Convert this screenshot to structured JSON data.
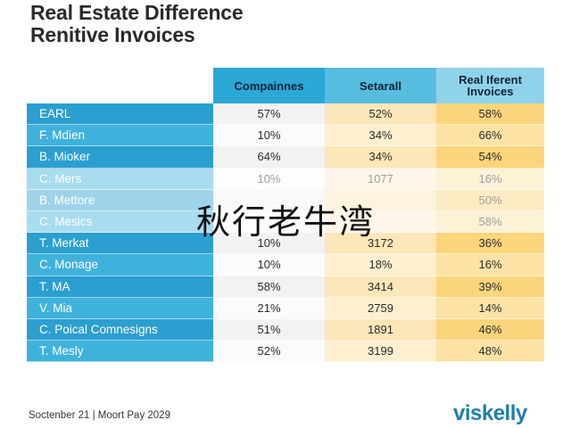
{
  "title": {
    "line1": "Real Estate Difference",
    "line2": "Renitive Invoices"
  },
  "columns": [
    "Compainnes",
    "Setarall",
    "Real Iferent Invoices"
  ],
  "chart_data": {
    "type": "table",
    "title": "Real Estate Difference Renitive Invoices",
    "columns": [
      "Compainnes",
      "Setarall",
      "Real Iferent Invoices"
    ],
    "rows": [
      {
        "name": "EARL",
        "values": [
          "57%",
          "52%",
          "58%"
        ]
      },
      {
        "name": "F. Mdien",
        "values": [
          "10%",
          "34%",
          "66%"
        ]
      },
      {
        "name": "B. Mioker",
        "values": [
          "64%",
          "34%",
          "54%"
        ]
      },
      {
        "name": "C. Mers",
        "values": [
          "10%",
          "1077",
          "16%"
        ]
      },
      {
        "name": "B. Mettore",
        "values": [
          "",
          "",
          "50%"
        ]
      },
      {
        "name": "C. Mesics",
        "values": [
          "",
          "",
          "58%"
        ]
      },
      {
        "name": "T. Merkat",
        "values": [
          "10%",
          "3172",
          "36%"
        ]
      },
      {
        "name": "C. Monage",
        "values": [
          "10%",
          "18%",
          "16%"
        ]
      },
      {
        "name": "T. MA",
        "values": [
          "58%",
          "3414",
          "39%"
        ]
      },
      {
        "name": "V. Mia",
        "values": [
          "21%",
          "2759",
          "14%"
        ]
      },
      {
        "name": "C. Poical Comnesigns",
        "values": [
          "51%",
          "1891",
          "46%"
        ]
      },
      {
        "name": "T. Mesly",
        "values": [
          "52%",
          "3199",
          "48%"
        ]
      }
    ]
  },
  "watermark": "秋行老牛湾",
  "footer": {
    "date": "Soctenber 21  |  Moort Pay 2029",
    "brand": "viskelly"
  }
}
